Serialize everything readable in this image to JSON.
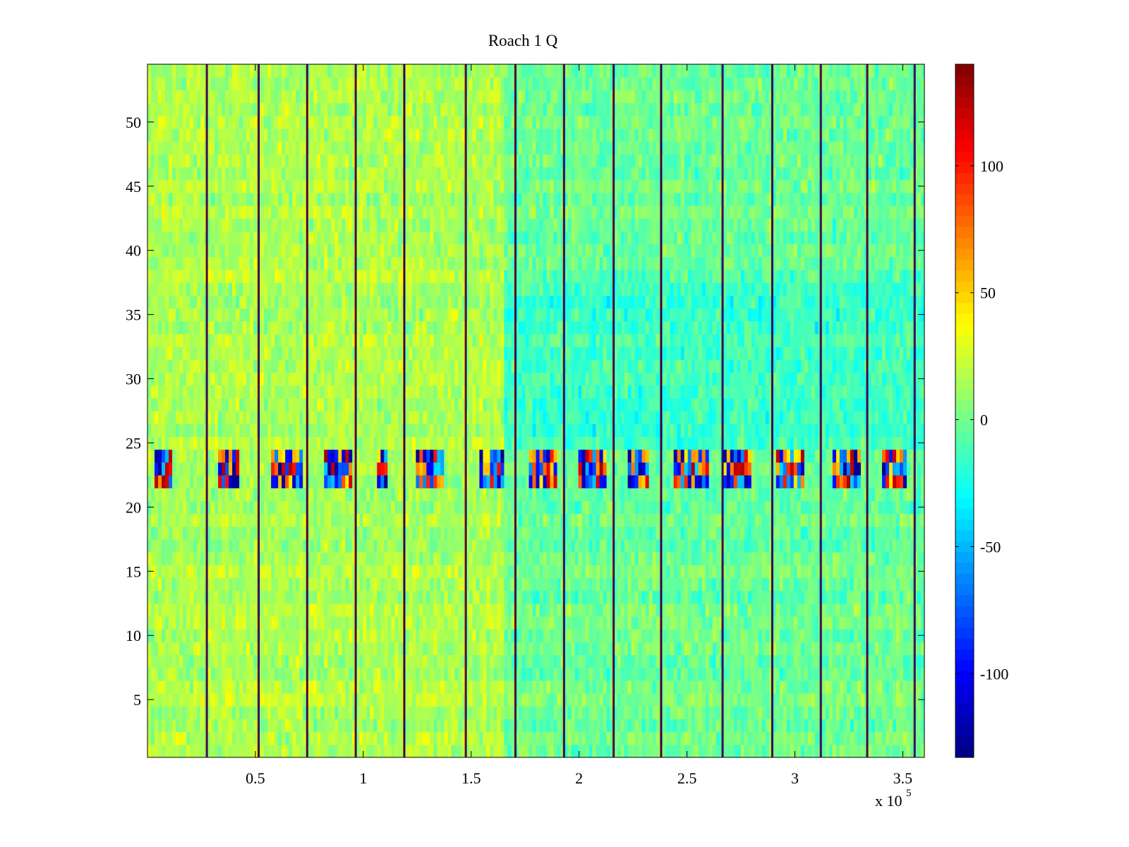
{
  "chart_data": {
    "type": "heatmap",
    "title": "Roach 1 Q",
    "xlabel": "",
    "ylabel": "",
    "x_exponent_label": "x 10",
    "x_exponent_power": "5",
    "xlim": [
      0.0,
      3.6
    ],
    "ylim": [
      0.5,
      54.5
    ],
    "x_ticks": [
      0.5,
      1,
      1.5,
      2,
      2.5,
      3,
      3.5
    ],
    "x_tick_labels": [
      "0.5",
      "1",
      "1.5",
      "2",
      "2.5",
      "3",
      "3.5"
    ],
    "y_ticks": [
      5,
      10,
      15,
      20,
      25,
      30,
      35,
      40,
      45,
      50
    ],
    "y_tick_labels": [
      "5",
      "10",
      "15",
      "20",
      "25",
      "30",
      "35",
      "40",
      "45",
      "50"
    ],
    "rows": 54,
    "colormap": "jet",
    "clim": [
      -133,
      140
    ],
    "colorbar_ticks": [
      -100,
      -50,
      0,
      50,
      100
    ],
    "colorbar_tick_labels": [
      "-100",
      "-50",
      "0",
      "50",
      "100"
    ],
    "vertical_stripes_x": [
      0.275,
      0.515,
      0.74,
      0.965,
      1.19,
      1.475,
      1.705,
      1.93,
      2.16,
      2.38,
      2.665,
      2.895,
      3.12,
      3.335,
      3.555
    ],
    "noisy_band_rows": [
      21.5,
      22.5,
      23.5
    ],
    "noisy_band_x_clusters": [
      [
        0.04,
        0.12
      ],
      [
        0.33,
        0.43
      ],
      [
        0.58,
        0.72
      ],
      [
        0.82,
        0.95
      ],
      [
        1.06,
        1.12
      ],
      [
        1.25,
        1.38
      ],
      [
        1.54,
        1.66
      ],
      [
        1.77,
        1.9
      ],
      [
        2.0,
        2.12
      ],
      [
        2.22,
        2.33
      ],
      [
        2.44,
        2.6
      ],
      [
        2.66,
        2.8
      ],
      [
        2.92,
        3.05
      ],
      [
        3.18,
        3.3
      ],
      [
        3.4,
        3.52
      ]
    ],
    "regions": [
      {
        "x_range": [
          0.0,
          1.65
        ],
        "y_range": [
          0.5,
          54.5
        ],
        "mean_value": 15
      },
      {
        "x_range": [
          1.65,
          3.6
        ],
        "y_range": [
          0.5,
          20.5
        ],
        "mean_value": -2
      },
      {
        "x_range": [
          1.65,
          3.6
        ],
        "y_range": [
          24.5,
          38.5
        ],
        "mean_value": -15
      },
      {
        "x_range": [
          1.65,
          3.6
        ],
        "y_range": [
          38.5,
          54.5
        ],
        "mean_value": -3
      }
    ],
    "grid": false,
    "legend": "colorbar-right"
  }
}
